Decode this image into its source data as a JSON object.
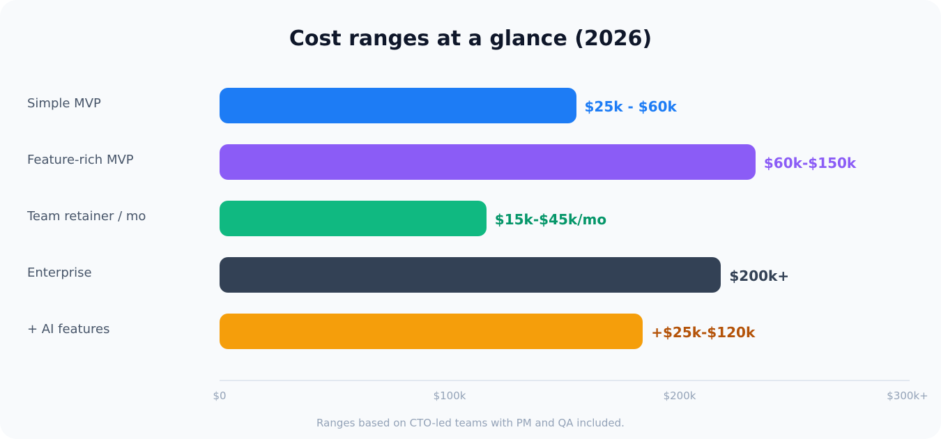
{
  "chart_data": {
    "type": "bar",
    "orientation": "horizontal",
    "title": "Cost ranges at a glance (2026)",
    "categories": [
      "Simple MVP",
      "Feature-rich MVP",
      "Team retainer / mo",
      "Enterprise",
      "+ AI features"
    ],
    "values": [
      155,
      233,
      116,
      218,
      184
    ],
    "value_labels": [
      "$25k - $60k",
      "$60k-$150k",
      "$15k-$45k/mo",
      "$200k+",
      "+$25k-$120k"
    ],
    "bar_colors": [
      "#1d7cf5",
      "#8b5cf6",
      "#10b981",
      "#334155",
      "#f59e0b"
    ],
    "label_colors": [
      "#1d7cf5",
      "#8b5cf6",
      "#059669",
      "#334155",
      "#b45309"
    ],
    "xlim": [
      0,
      300
    ],
    "x_ticks": [
      0,
      100,
      200,
      300
    ],
    "x_tick_labels": [
      "$0",
      "$100k",
      "$200k",
      "$300k+"
    ],
    "grid": false,
    "legend": "none"
  },
  "footnote": "Ranges based on CTO-led teams with PM and QA included."
}
